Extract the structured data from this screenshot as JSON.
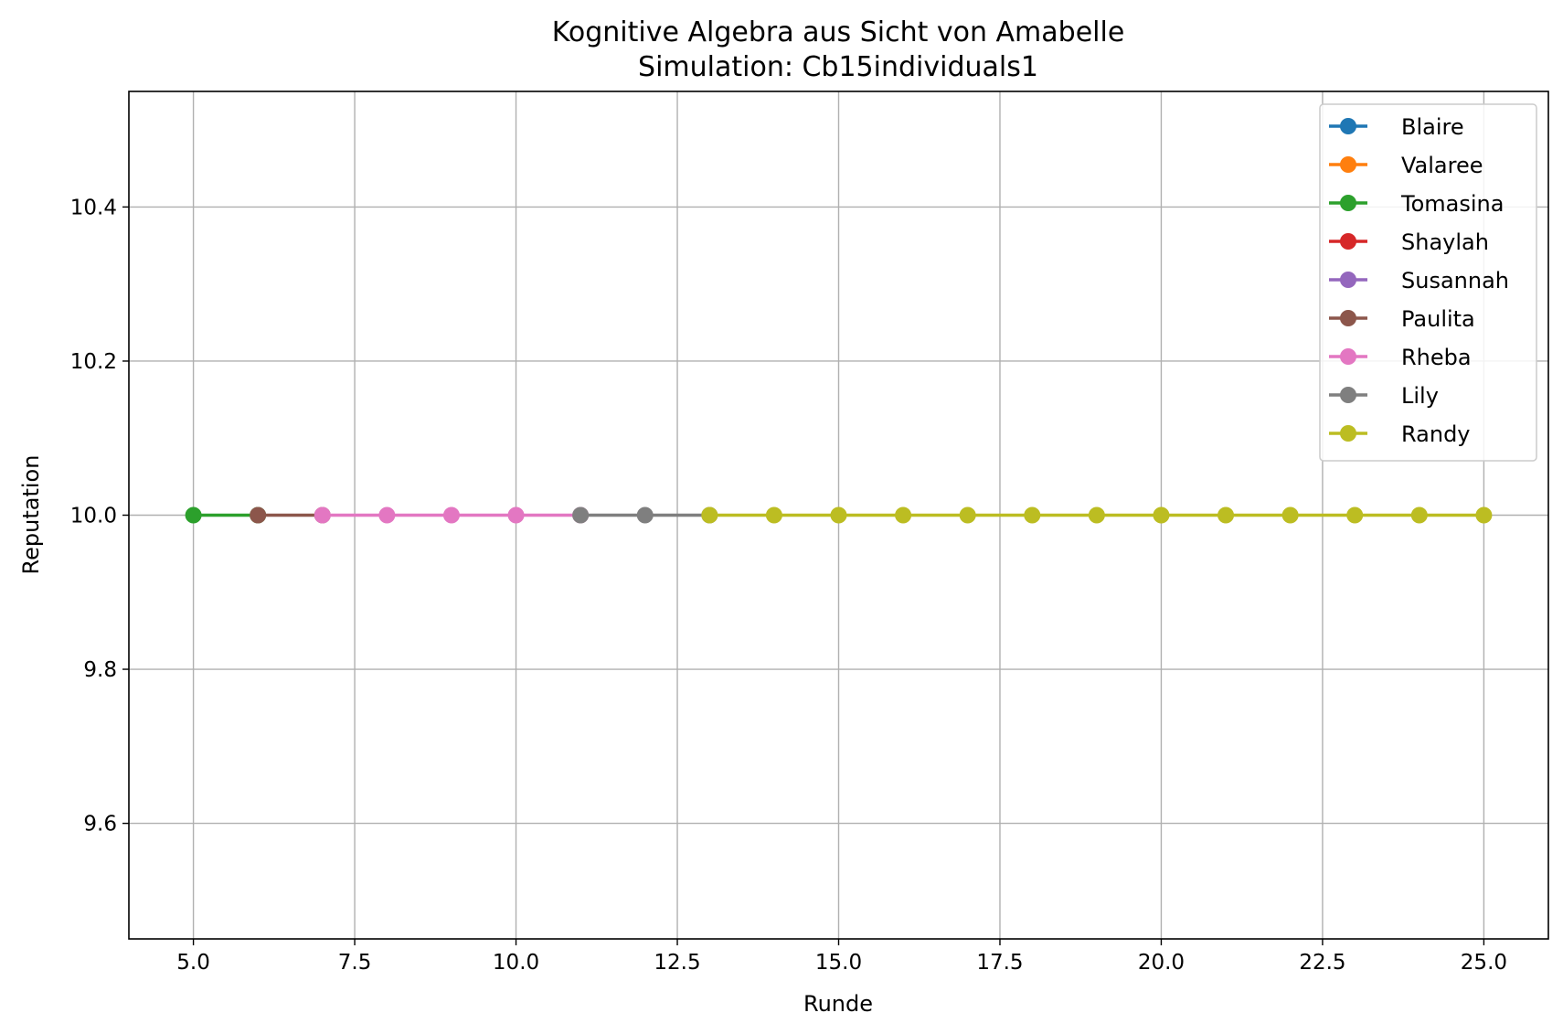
{
  "chart_data": {
    "type": "line",
    "title": "Kognitive Algebra aus Sicht von Amabelle",
    "subtitle": "Simulation: Cb15individuals1",
    "xlabel": "Runde",
    "ylabel": "Reputation",
    "xlim": [
      4.0,
      26.0
    ],
    "ylim": [
      9.45,
      10.55
    ],
    "xticks": [
      5.0,
      7.5,
      10.0,
      12.5,
      15.0,
      17.5,
      20.0,
      22.5,
      25.0
    ],
    "xtick_labels": [
      "5.0",
      "7.5",
      "10.0",
      "12.5",
      "15.0",
      "17.5",
      "20.0",
      "22.5",
      "25.0"
    ],
    "yticks": [
      9.6,
      9.8,
      10.0,
      10.2,
      10.4
    ],
    "ytick_labels": [
      "9.6",
      "9.8",
      "10.0",
      "10.2",
      "10.4"
    ],
    "grid": true,
    "legend_position": "top-right",
    "series": [
      {
        "name": "Blaire",
        "color": "#1f77b4",
        "x": [],
        "y": []
      },
      {
        "name": "Valaree",
        "color": "#ff7f0e",
        "x": [],
        "y": []
      },
      {
        "name": "Tomasina",
        "color": "#2ca02c",
        "x": [
          5,
          6
        ],
        "y": [
          10.0,
          10.0
        ]
      },
      {
        "name": "Shaylah",
        "color": "#d62728",
        "x": [],
        "y": []
      },
      {
        "name": "Susannah",
        "color": "#9467bd",
        "x": [],
        "y": []
      },
      {
        "name": "Paulita",
        "color": "#8c564b",
        "x": [
          6,
          7
        ],
        "y": [
          10.0,
          10.0
        ]
      },
      {
        "name": "Rheba",
        "color": "#e377c2",
        "x": [
          7,
          8,
          9,
          10,
          11
        ],
        "y": [
          10.0,
          10.0,
          10.0,
          10.0,
          10.0
        ]
      },
      {
        "name": "Lily",
        "color": "#7f7f7f",
        "x": [
          11,
          12,
          13
        ],
        "y": [
          10.0,
          10.0,
          10.0
        ]
      },
      {
        "name": "Randy",
        "color": "#bcbd22",
        "x": [
          13,
          14,
          15,
          16,
          17,
          18,
          19,
          20,
          21,
          22,
          23,
          24,
          25
        ],
        "y": [
          10.0,
          10.0,
          10.0,
          10.0,
          10.0,
          10.0,
          10.0,
          10.0,
          10.0,
          10.0,
          10.0,
          10.0,
          10.0
        ]
      }
    ]
  }
}
